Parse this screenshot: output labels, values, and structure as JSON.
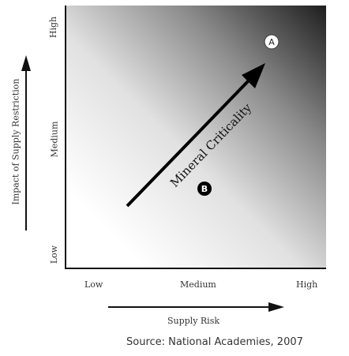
{
  "y_axis": {
    "label": "Impact of Supply Restriction",
    "ticks": [
      "High",
      "Medium",
      "Low"
    ]
  },
  "x_axis": {
    "label": "Supply Risk",
    "ticks": [
      "Low",
      "Medium",
      "High"
    ]
  },
  "diagonal_label": "Mineral Criticality",
  "markers": [
    {
      "label": "A",
      "style": "white-circle"
    },
    {
      "label": "B",
      "style": "black-circle"
    }
  ],
  "source": "Source: National Academies, 2007",
  "colors": {
    "gradient_dark": "#1e1e1e",
    "gradient_light": "#ffffff",
    "arrow": "#111111"
  }
}
